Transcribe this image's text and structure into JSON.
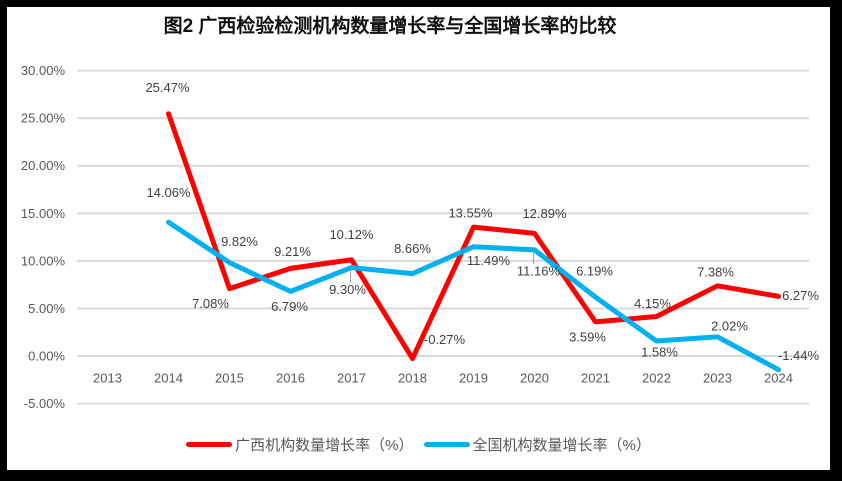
{
  "title": "图2 广西检验检测机构数量增长率与全国增长率的比较",
  "chart_data": {
    "type": "line",
    "title": "图2 广西检验检测机构数量增长率与全国增长率的比较",
    "categories": [
      "2013",
      "2014",
      "2015",
      "2016",
      "2017",
      "2018",
      "2019",
      "2020",
      "2021",
      "2022",
      "2023",
      "2024"
    ],
    "series": [
      {
        "name": "广西机构数量增长率（%）",
        "color": "#FF0000",
        "values": [
          null,
          25.47,
          7.08,
          9.21,
          10.12,
          -0.27,
          13.55,
          12.89,
          3.59,
          4.15,
          7.38,
          6.27
        ],
        "label_offsets": [
          [
            0,
            0
          ],
          [
            -1,
            -26
          ],
          [
            -19,
            15
          ],
          [
            2,
            -17
          ],
          [
            0,
            -25
          ],
          [
            32,
            -19
          ],
          [
            -3,
            -14
          ],
          [
            10,
            -20
          ],
          [
            -8,
            15
          ],
          [
            -4,
            -13
          ],
          [
            -2,
            -14
          ],
          [
            22,
            -1
          ]
        ]
      },
      {
        "name": "全国机构数量增长率（%）",
        "color": "#00B0F0",
        "values": [
          null,
          14.06,
          9.82,
          6.79,
          9.3,
          8.66,
          11.49,
          11.16,
          6.19,
          1.58,
          2.02,
          -1.44
        ],
        "label_offsets": [
          [
            0,
            0
          ],
          [
            0,
            -30
          ],
          [
            10,
            -21
          ],
          [
            -1,
            15
          ],
          [
            -4,
            22
          ],
          [
            0,
            -25
          ],
          [
            15,
            14
          ],
          [
            4,
            21
          ],
          [
            -1,
            -26
          ],
          [
            3,
            11
          ],
          [
            12,
            -11
          ],
          [
            20,
            -14
          ]
        ]
      }
    ],
    "ylim": [
      -5,
      30
    ],
    "ytick_step": 5,
    "ytick_labels": [
      "30.00%",
      "25.00%",
      "20.00%",
      "15.00%",
      "10.00%",
      "5.00%",
      "0.00%",
      "-5.00%"
    ],
    "label_format": "0.00%",
    "grid": true,
    "legend_position": "bottom",
    "leader_lines": [
      {
        "series": 1,
        "index": 4
      },
      {
        "series": 1,
        "index": 7
      }
    ],
    "colors": {
      "grid": "#D9D9D9",
      "axis_text": "#595959",
      "data_label_text": "#404040",
      "leader": "#A6A6A6",
      "frame": "#000000",
      "background": "#FFFFFF"
    }
  }
}
